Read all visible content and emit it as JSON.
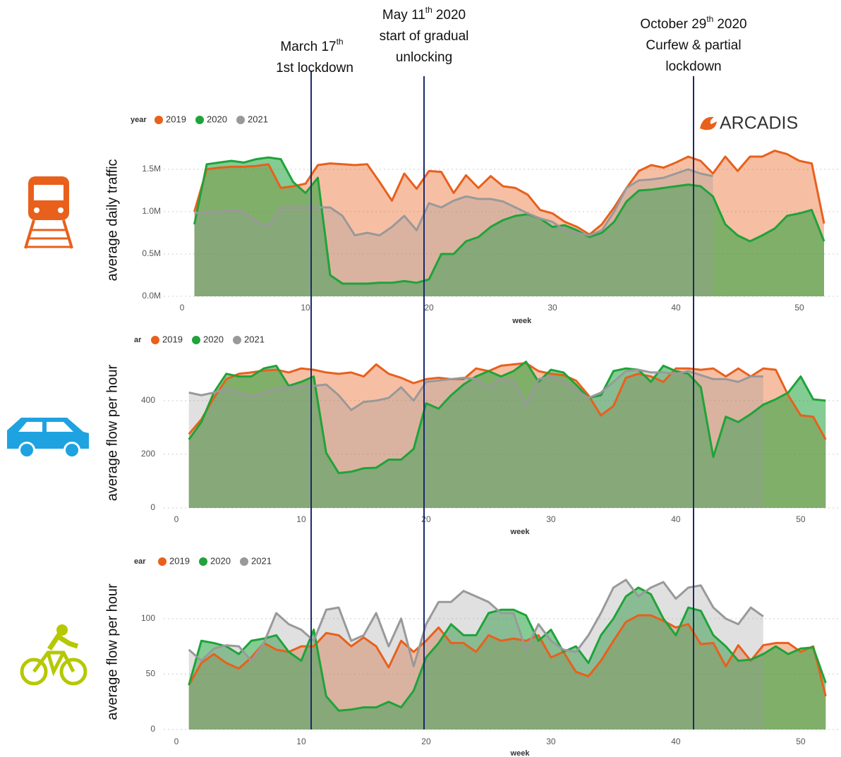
{
  "annotations": [
    {
      "date": "March 17",
      "suffix": "th",
      "lines": [
        "1st lockdown"
      ]
    },
    {
      "date": "May 11",
      "suffix": "th",
      "year": "2020",
      "lines": [
        "start of gradual",
        "unlocking"
      ]
    },
    {
      "date": "October 29",
      "suffix": "th",
      "year": "2020",
      "lines": [
        "Curfew & partial",
        "lockdown"
      ]
    }
  ],
  "logo": "ARCADIS",
  "chart_data": [
    {
      "type": "area",
      "y_label": "average daily traffic",
      "x_label": "week",
      "legend_title": "year",
      "x": [
        1,
        2,
        3,
        4,
        5,
        6,
        7,
        8,
        9,
        10,
        11,
        12,
        13,
        14,
        15,
        16,
        17,
        18,
        19,
        20,
        21,
        22,
        23,
        24,
        25,
        26,
        27,
        28,
        29,
        30,
        31,
        32,
        33,
        34,
        35,
        36,
        37,
        38,
        39,
        40,
        41,
        42,
        43,
        44,
        45,
        46,
        47,
        48,
        49,
        50,
        51,
        52
      ],
      "xlim": [
        0,
        53
      ],
      "xticks": [
        0,
        10,
        20,
        30,
        40,
        50
      ],
      "ylim": [
        0,
        1800000
      ],
      "yticks": [
        {
          "value": 0,
          "label": "0.0M"
        },
        {
          "value": 500000,
          "label": "0.5M"
        },
        {
          "value": 1000000,
          "label": "1.0M"
        },
        {
          "value": 1500000,
          "label": "1.5M"
        }
      ],
      "grid": true,
      "series": [
        {
          "name": "2019",
          "color": "#e8601c",
          "values": [
            1000000,
            1500000,
            1520000,
            1530000,
            1530000,
            1540000,
            1560000,
            1280000,
            1300000,
            1330000,
            1550000,
            1570000,
            1560000,
            1550000,
            1560000,
            1350000,
            1130000,
            1450000,
            1270000,
            1480000,
            1470000,
            1220000,
            1430000,
            1280000,
            1420000,
            1300000,
            1280000,
            1200000,
            1020000,
            980000,
            880000,
            820000,
            730000,
            850000,
            1050000,
            1280000,
            1480000,
            1550000,
            1520000,
            1580000,
            1650000,
            1600000,
            1450000,
            1650000,
            1480000,
            1650000,
            1650000,
            1720000,
            1680000,
            1600000,
            1570000,
            860000
          ]
        },
        {
          "name": "2020",
          "color": "#1fa33a",
          "values": [
            850000,
            1560000,
            1580000,
            1600000,
            1580000,
            1620000,
            1640000,
            1620000,
            1350000,
            1220000,
            1400000,
            250000,
            150000,
            150000,
            150000,
            160000,
            160000,
            180000,
            160000,
            200000,
            500000,
            500000,
            650000,
            700000,
            820000,
            900000,
            950000,
            970000,
            920000,
            820000,
            840000,
            780000,
            700000,
            750000,
            880000,
            1120000,
            1250000,
            1260000,
            1280000,
            1300000,
            1320000,
            1300000,
            1180000,
            850000,
            720000,
            650000,
            720000,
            800000,
            950000,
            980000,
            1020000,
            650000
          ]
        },
        {
          "name": "2021",
          "color": "#999999",
          "values": [
            980000,
            1000000,
            1000000,
            1020000,
            1000000,
            880000,
            830000,
            1050000,
            1050000,
            1050000,
            1050000,
            1050000,
            950000,
            720000,
            750000,
            720000,
            820000,
            950000,
            780000,
            1100000,
            1050000,
            1130000,
            1180000,
            1150000,
            1150000,
            1120000,
            1050000,
            980000,
            920000,
            880000,
            780000,
            750000,
            720000,
            780000,
            1000000,
            1280000,
            1370000,
            1380000,
            1400000,
            1450000,
            1500000,
            1450000,
            1420000,
            null,
            null,
            null,
            null,
            null,
            null,
            null,
            null,
            null
          ]
        }
      ]
    },
    {
      "type": "area",
      "y_label": "average flow per hour",
      "x_label": "week",
      "legend_title": "ar",
      "x": [
        1,
        2,
        3,
        4,
        5,
        6,
        7,
        8,
        9,
        10,
        11,
        12,
        13,
        14,
        15,
        16,
        17,
        18,
        19,
        20,
        21,
        22,
        23,
        24,
        25,
        26,
        27,
        28,
        29,
        30,
        31,
        32,
        33,
        34,
        35,
        36,
        37,
        38,
        39,
        40,
        41,
        42,
        43,
        44,
        45,
        46,
        47,
        48,
        49,
        50,
        51,
        52
      ],
      "xlim": [
        0,
        53
      ],
      "xticks": [
        0,
        10,
        20,
        30,
        40,
        50
      ],
      "ylim": [
        0,
        560
      ],
      "yticks": [
        0,
        200,
        400
      ],
      "grid": true,
      "series": [
        {
          "name": "2019",
          "color": "#e8601c",
          "values": [
            275,
            330,
            410,
            480,
            500,
            505,
            512,
            515,
            505,
            520,
            515,
            505,
            500,
            505,
            490,
            535,
            500,
            485,
            465,
            480,
            485,
            480,
            480,
            520,
            510,
            530,
            535,
            540,
            510,
            500,
            495,
            475,
            420,
            345,
            380,
            485,
            500,
            490,
            470,
            520,
            520,
            515,
            520,
            490,
            520,
            490,
            520,
            515,
            420,
            345,
            340,
            255
          ]
        },
        {
          "name": "2020",
          "color": "#1fa33a",
          "values": [
            255,
            320,
            430,
            500,
            490,
            490,
            520,
            530,
            455,
            470,
            490,
            205,
            130,
            135,
            148,
            150,
            180,
            180,
            220,
            390,
            370,
            420,
            460,
            490,
            510,
            490,
            510,
            545,
            470,
            515,
            505,
            460,
            410,
            420,
            510,
            520,
            515,
            470,
            530,
            510,
            500,
            450,
            190,
            340,
            320,
            350,
            385,
            405,
            430,
            490,
            405,
            400
          ]
        },
        {
          "name": "2021",
          "color": "#999999",
          "values": [
            430,
            420,
            430,
            445,
            430,
            415,
            430,
            445,
            450,
            450,
            455,
            460,
            420,
            365,
            395,
            400,
            410,
            450,
            400,
            470,
            475,
            480,
            485,
            480,
            450,
            480,
            470,
            385,
            480,
            490,
            470,
            440,
            410,
            430,
            470,
            510,
            515,
            505,
            505,
            500,
            510,
            495,
            480,
            480,
            470,
            490,
            490,
            null,
            null,
            null,
            null,
            null
          ]
        }
      ]
    },
    {
      "type": "area",
      "y_label": "average flow per hour",
      "x_label": "week",
      "legend_title": "ear",
      "x": [
        1,
        2,
        3,
        4,
        5,
        6,
        7,
        8,
        9,
        10,
        11,
        12,
        13,
        14,
        15,
        16,
        17,
        18,
        19,
        20,
        21,
        22,
        23,
        24,
        25,
        26,
        27,
        28,
        29,
        30,
        31,
        32,
        33,
        34,
        35,
        36,
        37,
        38,
        39,
        40,
        41,
        42,
        43,
        44,
        45,
        46,
        47,
        48,
        49,
        50,
        51,
        52
      ],
      "xlim": [
        0,
        53
      ],
      "xticks": [
        0,
        10,
        20,
        30,
        40,
        50
      ],
      "ylim": [
        0,
        140
      ],
      "yticks": [
        0,
        50,
        100
      ],
      "grid": true,
      "series": [
        {
          "name": "2019",
          "color": "#e8601c",
          "values": [
            40,
            60,
            68,
            60,
            55,
            65,
            78,
            72,
            70,
            75,
            75,
            87,
            85,
            75,
            83,
            75,
            56,
            80,
            70,
            80,
            92,
            78,
            78,
            70,
            85,
            80,
            82,
            80,
            85,
            65,
            70,
            52,
            48,
            62,
            80,
            97,
            103,
            103,
            98,
            92,
            95,
            77,
            78,
            57,
            76,
            62,
            76,
            78,
            78,
            70,
            75,
            30
          ]
        },
        {
          "name": "2020",
          "color": "#1fa33a",
          "values": [
            40,
            80,
            78,
            75,
            68,
            80,
            82,
            85,
            70,
            62,
            90,
            30,
            17,
            18,
            20,
            20,
            25,
            20,
            35,
            65,
            78,
            95,
            85,
            85,
            105,
            108,
            108,
            103,
            80,
            90,
            70,
            75,
            60,
            85,
            100,
            120,
            128,
            122,
            100,
            85,
            110,
            107,
            85,
            75,
            62,
            63,
            68,
            75,
            68,
            73,
            74,
            42
          ]
        },
        {
          "name": "2021",
          "color": "#999999",
          "values": [
            72,
            62,
            73,
            76,
            75,
            62,
            78,
            105,
            95,
            90,
            80,
            108,
            110,
            80,
            85,
            105,
            75,
            100,
            57,
            95,
            115,
            115,
            125,
            120,
            115,
            105,
            105,
            72,
            95,
            80,
            72,
            70,
            85,
            105,
            128,
            135,
            120,
            128,
            133,
            118,
            128,
            130,
            110,
            100,
            95,
            110,
            102,
            null,
            null,
            null,
            null,
            null
          ]
        }
      ]
    }
  ]
}
